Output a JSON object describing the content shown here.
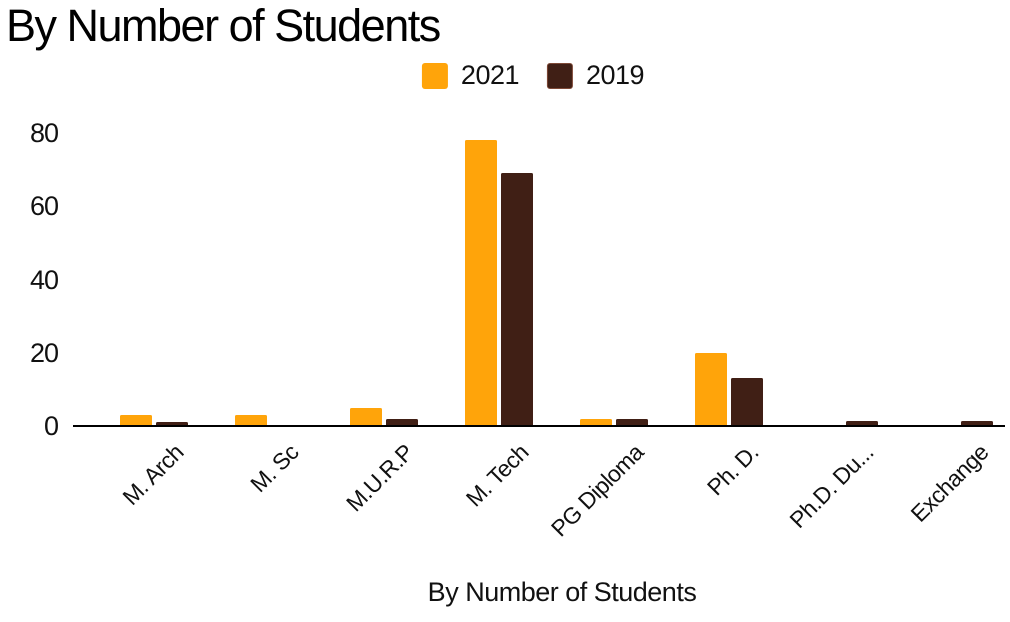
{
  "title": "By Number of Students",
  "colors": {
    "series_2021": "#FFA40A",
    "series_2019": "#401F15",
    "legend_2019_border": "#7E4937",
    "axis": "#000000",
    "text": "#111111"
  },
  "legend": {
    "items": [
      {
        "label": "2021"
      },
      {
        "label": "2019"
      }
    ]
  },
  "chart_data": {
    "type": "bar",
    "title": "By Number of Students",
    "xlabel": "By Number of Students",
    "ylabel": "",
    "categories": [
      "M. Arch",
      "M. Sc",
      "M.U.R.P",
      "M. Tech",
      "PG Diploma",
      "Ph. D.",
      "Ph.D. Du...",
      "Exchange"
    ],
    "series": [
      {
        "name": "2021",
        "color": "#FFA40A",
        "values": [
          3,
          3,
          5,
          78,
          2,
          20,
          0,
          0
        ]
      },
      {
        "name": "2019",
        "color": "#401F15",
        "values": [
          1,
          0,
          2,
          69,
          2,
          13,
          1.5,
          1.5
        ]
      }
    ],
    "ylim": [
      0,
      80
    ],
    "yticks": [
      0,
      20,
      40,
      60,
      80
    ],
    "grid": false,
    "legend_position": "top-center"
  }
}
